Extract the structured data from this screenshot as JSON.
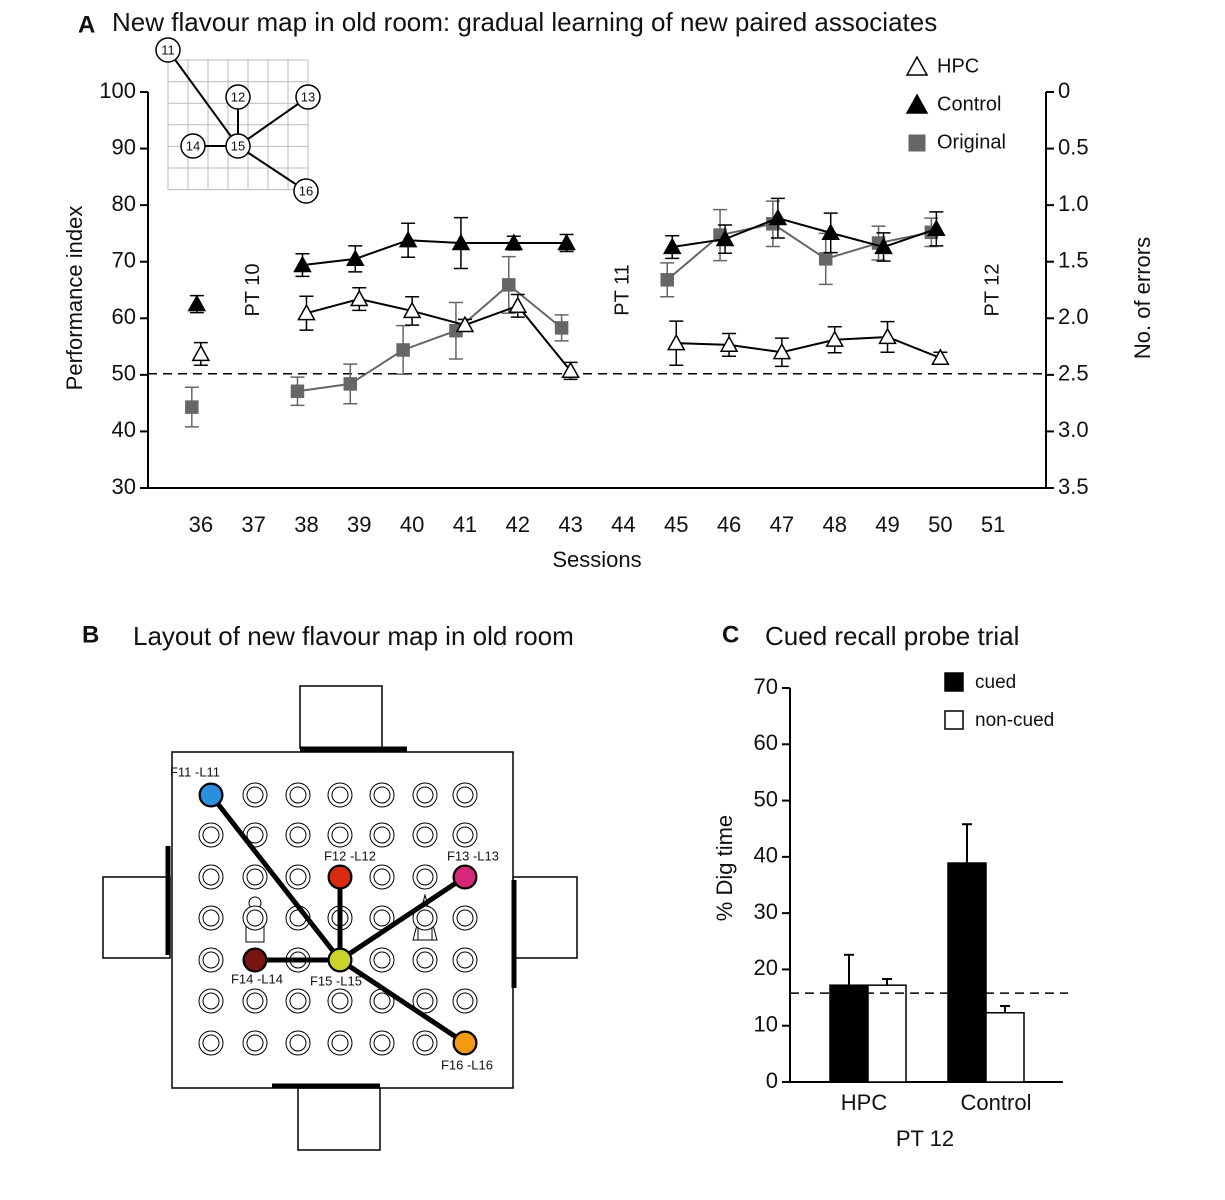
{
  "chart_data": [
    {
      "type": "line",
      "panel": "A",
      "title": "New flavour map in old room: gradual learning of new paired associates",
      "xlabel": "Sessions",
      "ylabel": "Performance index",
      "y2label": "No. of errors",
      "x": [
        36,
        37,
        38,
        39,
        40,
        41,
        42,
        43,
        44,
        45,
        46,
        47,
        48,
        49,
        50,
        51
      ],
      "xlim": [
        35,
        52
      ],
      "xticks": [
        36,
        37,
        38,
        39,
        40,
        41,
        42,
        43,
        44,
        45,
        46,
        47,
        48,
        49,
        50,
        51
      ],
      "ylim": [
        30,
        100
      ],
      "yticks": [
        30,
        40,
        50,
        60,
        70,
        80,
        90,
        100
      ],
      "y2lim": [
        3.5,
        0
      ],
      "y2ticks": [
        {
          "value": 3.5,
          "label": "3.5"
        },
        {
          "value": 3,
          "label": "3.0"
        },
        2.5,
        {
          "value": 2,
          "label": "2.0"
        },
        1.5,
        {
          "value": 1,
          "label": "1.0"
        },
        0.5,
        0
      ],
      "hline": 50.2,
      "legend": "upper right",
      "annotations": [
        {
          "text": "PT 10",
          "x": 37
        },
        {
          "text": "PT 11",
          "x": 44
        },
        {
          "text": "PT 12",
          "x": 51
        }
      ],
      "series": [
        {
          "name": "Original",
          "marker": "square",
          "color": "#666666",
          "fill": "#666666",
          "values": [
            44.3,
            null,
            47.1,
            48.4,
            54.4,
            57.8,
            65.9,
            58.3,
            null,
            66.8,
            74.7,
            76.7,
            70.5,
            73.3,
            75.2,
            null
          ],
          "errors": [
            3.5,
            null,
            2.5,
            3.5,
            4.3,
            5,
            5,
            2.3,
            null,
            3,
            4.5,
            4,
            4.5,
            3,
            2.5,
            null
          ]
        },
        {
          "name": "Control",
          "marker": "triangle",
          "color": "#000000",
          "fill": "#000000",
          "values": [
            62.5,
            null,
            69.4,
            70.5,
            73.8,
            73.3,
            73.3,
            73.3,
            null,
            72.6,
            74,
            77.7,
            75.1,
            72.6,
            75.8,
            null
          ],
          "errors": [
            1.5,
            null,
            2,
            2.3,
            3,
            4.5,
            1.2,
            1.5,
            null,
            2,
            2.5,
            3.5,
            3.5,
            2.5,
            3,
            null
          ]
        },
        {
          "name": "HPC",
          "marker": "triangle",
          "color": "#000000",
          "fill": "#ffffff",
          "values": [
            53.7,
            null,
            60.9,
            63.4,
            61.3,
            58.8,
            62.2,
            50.7,
            null,
            55.6,
            55.3,
            54,
            56.2,
            56.7,
            53,
            null
          ],
          "errors": [
            2,
            null,
            3,
            2,
            2.5,
            1,
            2,
            1.5,
            null,
            3.9,
            2,
            2.5,
            2.3,
            2.7,
            1,
            null
          ]
        }
      ],
      "inset": {
        "nodes": [
          "11",
          "12",
          "13",
          "14",
          "15",
          "16"
        ]
      }
    },
    {
      "type": "bar",
      "panel": "C",
      "title": "Cued recall probe trial",
      "xlabel": "PT 12",
      "ylabel": "% Dig time",
      "categories": [
        "HPC",
        "Control"
      ],
      "ylim": [
        0,
        70
      ],
      "yticks": [
        0,
        10,
        20,
        30,
        40,
        50,
        60,
        70
      ],
      "hline": 15.8,
      "legend": "upper right",
      "series": [
        {
          "name": "cued",
          "color": "#000000",
          "values": [
            17.2,
            38.9
          ],
          "errors": [
            5.4,
            6.9
          ]
        },
        {
          "name": "non-cued",
          "color": "#ffffff",
          "values": [
            17.2,
            12.3
          ],
          "errors": [
            1.1,
            1.2
          ]
        }
      ]
    }
  ],
  "diagram": {
    "panel": "B",
    "title": "Layout of new flavour map in old room",
    "wells": [
      {
        "label": "F11 -L11",
        "color": "#2b8fe0"
      },
      {
        "label": "F12 -L12",
        "color": "#d92b10"
      },
      {
        "label": "F13 -L13",
        "color": "#d6287a"
      },
      {
        "label": "F14 -L14",
        "color": "#7a1410"
      },
      {
        "label": "F15 -L15",
        "color": "#c8d42a"
      },
      {
        "label": "F16 -L16",
        "color": "#f39a14"
      }
    ]
  }
}
